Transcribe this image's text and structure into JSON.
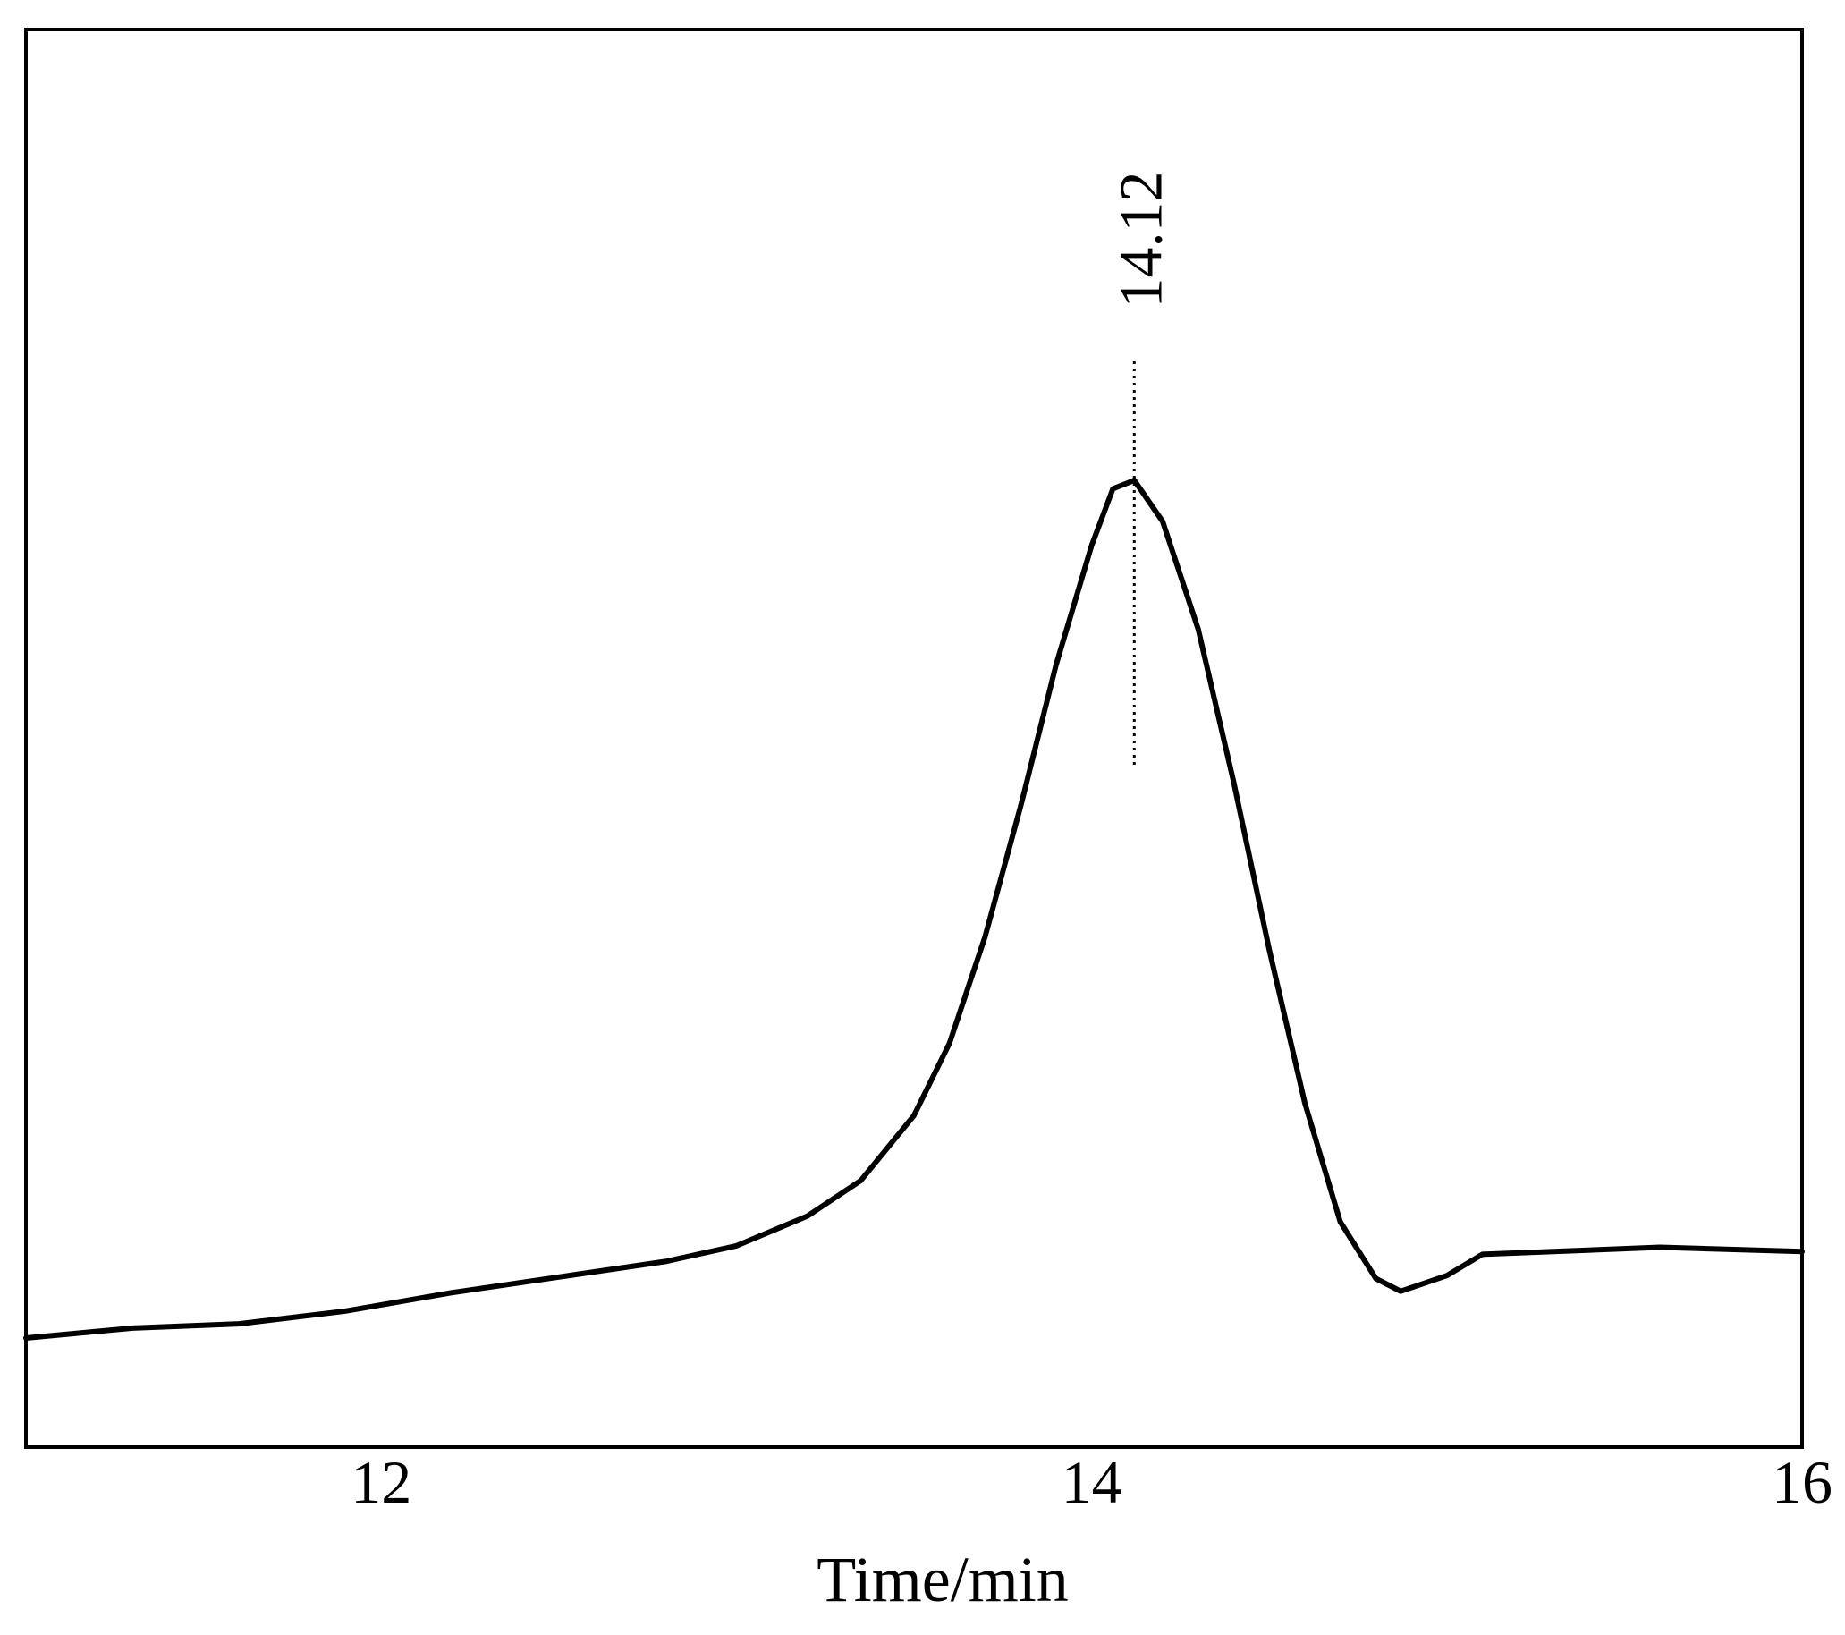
{
  "chart_data": {
    "type": "line",
    "x_label": "Time/min",
    "xlim": [
      11,
      16
    ],
    "xticks": [
      12,
      14,
      16
    ],
    "ylim": [
      0,
      100
    ],
    "series": [
      {
        "color": "#000000",
        "x": [
          11,
          11.3,
          11.6,
          11.9,
          12.2,
          12.5,
          12.8,
          13.0,
          13.2,
          13.35,
          13.5,
          13.6,
          13.7,
          13.8,
          13.9,
          14.0,
          14.06,
          14.12,
          14.2,
          14.3,
          14.4,
          14.5,
          14.6,
          14.7,
          14.8,
          14.87,
          15.0,
          15.1,
          15.3,
          15.6,
          16.0
        ],
        "values": [
          7.7,
          8.4,
          8.7,
          9.6,
          10.9,
          12.0,
          13.1,
          14.2,
          16.3,
          18.8,
          23.4,
          28.5,
          36.0,
          45.2,
          55.2,
          63.6,
          67.6,
          68.2,
          65.3,
          57.7,
          46.9,
          35.1,
          24.3,
          15.9,
          11.9,
          11.0,
          12.1,
          13.6,
          13.8,
          14.1,
          13.8
        ]
      }
    ],
    "annotations": [
      {
        "x": 14.12,
        "label": "14.12"
      }
    ]
  }
}
